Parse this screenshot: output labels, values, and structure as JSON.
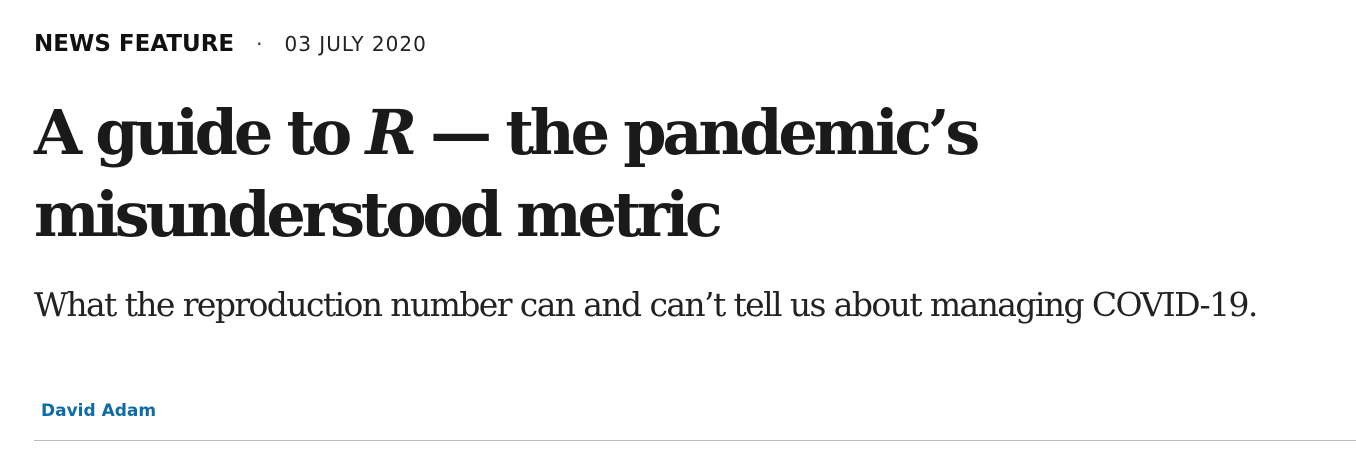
{
  "article": {
    "type": "NEWS FEATURE",
    "separator": "·",
    "date": "03 JULY 2020",
    "headline": {
      "part1": "A guide to ",
      "r": "R",
      "part2": " — the pandemic’s",
      "line2": "misunderstood metric"
    },
    "standfirst": "What the reproduction number can and can’t tell us about managing COVID-19.",
    "author": "David Adam"
  },
  "colors": {
    "author_link": "#0d6ba8",
    "divider": "#bdbdbd",
    "text": "#222222"
  }
}
